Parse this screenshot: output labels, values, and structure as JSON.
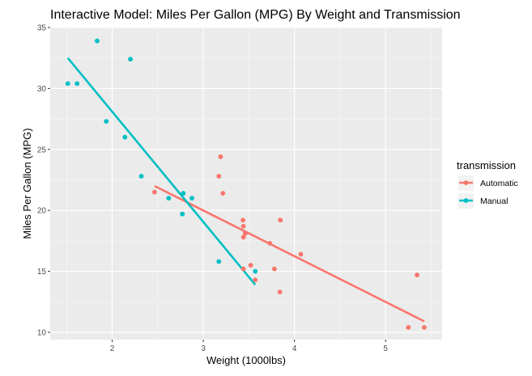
{
  "chart_data": {
    "type": "scatter",
    "title": "Interactive Model: Miles Per Gallon (MPG) By Weight and Transmission",
    "xlabel": "Weight (1000lbs)",
    "ylabel": "Miles Per Gallon (MPG)",
    "xlim": [
      1.32,
      5.62
    ],
    "ylim": [
      9.4,
      35.0
    ],
    "x_ticks": [
      2,
      3,
      4,
      5
    ],
    "y_ticks": [
      10,
      15,
      20,
      25,
      30,
      35
    ],
    "grid": true,
    "legend": {
      "title": "transmission",
      "placement": "right"
    },
    "series": [
      {
        "name": "Automatic",
        "color": "#F8766D",
        "points": [
          [
            2.465,
            21.5
          ],
          [
            3.17,
            22.8
          ],
          [
            3.19,
            24.4
          ],
          [
            3.215,
            21.4
          ],
          [
            3.435,
            19.2
          ],
          [
            3.44,
            18.7
          ],
          [
            3.44,
            17.8
          ],
          [
            3.44,
            15.2
          ],
          [
            3.46,
            18.1
          ],
          [
            3.52,
            15.5
          ],
          [
            3.57,
            14.3
          ],
          [
            3.73,
            17.3
          ],
          [
            3.78,
            15.2
          ],
          [
            3.84,
            13.3
          ],
          [
            3.845,
            19.2
          ],
          [
            4.07,
            16.4
          ],
          [
            5.25,
            10.4
          ],
          [
            5.345,
            14.7
          ],
          [
            5.424,
            10.4
          ]
        ],
        "fit": {
          "x": [
            2.465,
            5.424
          ],
          "y": [
            22.0,
            10.9
          ]
        }
      },
      {
        "name": "Manual",
        "color": "#00BFC4",
        "points": [
          [
            1.513,
            30.4
          ],
          [
            1.615,
            30.4
          ],
          [
            1.835,
            33.9
          ],
          [
            1.935,
            27.3
          ],
          [
            2.14,
            26.0
          ],
          [
            2.2,
            32.4
          ],
          [
            2.32,
            22.8
          ],
          [
            2.62,
            21.0
          ],
          [
            2.77,
            19.7
          ],
          [
            2.78,
            21.4
          ],
          [
            2.875,
            21.0
          ],
          [
            3.17,
            15.8
          ],
          [
            3.57,
            15.0
          ]
        ],
        "fit": {
          "x": [
            1.513,
            3.57
          ],
          "y": [
            32.5,
            13.9
          ]
        }
      }
    ]
  }
}
